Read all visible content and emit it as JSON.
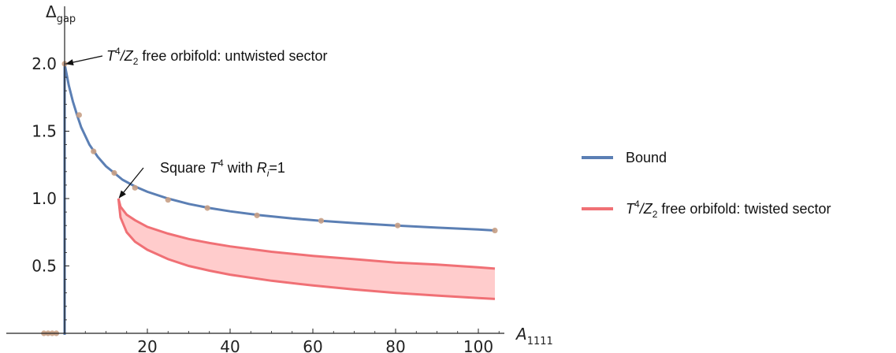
{
  "chart_data": {
    "type": "line",
    "xlabel": "A",
    "xlabel_sub": "1111",
    "ylabel": "Δ",
    "ylabel_sub": "gap",
    "xlim": [
      -5,
      107
    ],
    "ylim": [
      -0.02,
      2.05
    ],
    "x_ticks": [
      20,
      40,
      60,
      80,
      100
    ],
    "y_ticks": [
      0.5,
      1.0,
      1.5,
      2.0
    ],
    "y_tick_labels": [
      "0.5",
      "1.0",
      "1.5",
      "2.0"
    ],
    "grid": false,
    "legend_position": "right",
    "series": [
      {
        "name": "Bound",
        "color": "#5b7fb4",
        "x": [
          0,
          1,
          2,
          3,
          4,
          6,
          8,
          10,
          12,
          14,
          17,
          20,
          25,
          30,
          35,
          40,
          47,
          55,
          62,
          70,
          80,
          90,
          100,
          104
        ],
        "y": [
          2.0,
          1.84,
          1.72,
          1.62,
          1.53,
          1.4,
          1.31,
          1.24,
          1.19,
          1.14,
          1.09,
          1.05,
          1.0,
          0.96,
          0.93,
          0.905,
          0.877,
          0.852,
          0.835,
          0.818,
          0.8,
          0.784,
          0.77,
          0.763
        ]
      },
      {
        "name": "T4/Z2 free orbifold: twisted sector",
        "legend_base": "T",
        "legend_sup": "4",
        "legend_mid": "/Z",
        "legend_sub": "2",
        "legend_tail": " free orbifold: twisted sector",
        "color": "#f07075",
        "fill_color": "#ffcccc",
        "x": [
          13,
          13.5,
          15,
          17,
          20,
          25,
          30,
          35,
          40,
          50,
          60,
          70,
          80,
          90,
          100,
          104
        ],
        "upper": [
          1.0,
          0.94,
          0.88,
          0.84,
          0.79,
          0.74,
          0.7,
          0.67,
          0.645,
          0.605,
          0.575,
          0.55,
          0.525,
          0.51,
          0.49,
          0.48
        ],
        "lower": [
          1.0,
          0.86,
          0.75,
          0.68,
          0.62,
          0.55,
          0.5,
          0.465,
          0.435,
          0.39,
          0.355,
          0.325,
          0.3,
          0.28,
          0.262,
          0.255
        ]
      }
    ],
    "markers": {
      "name": "data points",
      "color": "#c8a085",
      "x": [
        0,
        3.5,
        7,
        12,
        17,
        25,
        34.5,
        46.5,
        62,
        80.5,
        104,
        -2,
        -3,
        -4,
        -5
      ],
      "y": [
        2.0,
        1.62,
        1.35,
        1.19,
        1.08,
        0.99,
        0.93,
        0.875,
        0.835,
        0.8,
        0.763,
        0,
        0,
        0,
        0
      ]
    },
    "annotations": [
      {
        "name": "untwisted",
        "base": "T",
        "sup": "4",
        "mid": "/Z",
        "sub": "2",
        "tail": " free orbifold: untwisted sector",
        "point": [
          0,
          2.0
        ]
      },
      {
        "name": "square",
        "prefix": "Square ",
        "base": "T",
        "sup": "4",
        "mid": " with ",
        "r": "R",
        "r_sub": "i",
        "tail": "=1",
        "point": [
          13,
          1.0
        ]
      }
    ]
  }
}
